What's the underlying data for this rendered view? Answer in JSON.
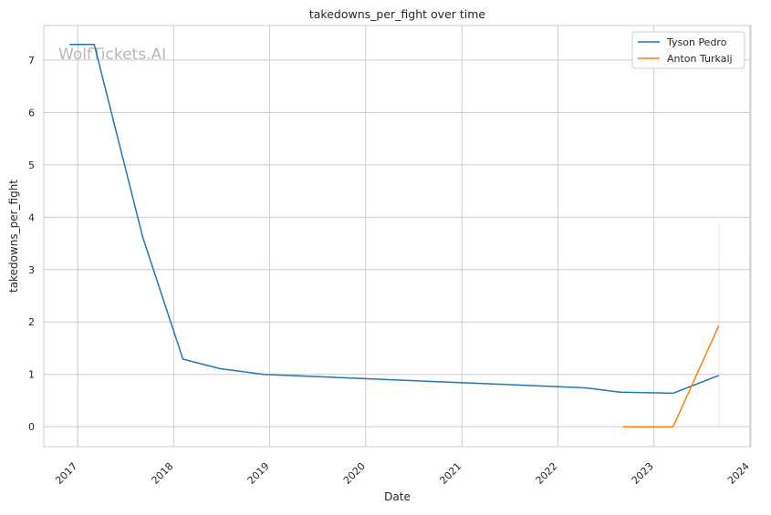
{
  "chart_data": {
    "type": "line",
    "title": "takedowns_per_fight over time",
    "xlabel": "Date",
    "ylabel": "takedowns_per_fight",
    "watermark": "WolfTickets.AI",
    "x_ticks": [
      "2017",
      "2018",
      "2019",
      "2020",
      "2021",
      "2022",
      "2023",
      "2024"
    ],
    "y_ticks": [
      "0",
      "1",
      "2",
      "3",
      "4",
      "5",
      "6",
      "7"
    ],
    "xlim": [
      "2016-08-25",
      "2024-01-05"
    ],
    "ylim": [
      -0.38,
      7.66
    ],
    "grid": true,
    "legend_position": "top-right",
    "series": [
      {
        "name": "Tyson Pedro",
        "color": "#1f77b4",
        "points": [
          {
            "x": "2016-12-01",
            "y": 7.3
          },
          {
            "x": "2017-03-05",
            "y": 7.3
          },
          {
            "x": "2017-09-05",
            "y": 3.62
          },
          {
            "x": "2018-02-05",
            "y": 1.29
          },
          {
            "x": "2018-06-25",
            "y": 1.11
          },
          {
            "x": "2018-12-10",
            "y": 1.0
          },
          {
            "x": "2022-04-20",
            "y": 0.74
          },
          {
            "x": "2022-08-25",
            "y": 0.66
          },
          {
            "x": "2023-03-15",
            "y": 0.64
          },
          {
            "x": "2023-09-05",
            "y": 0.98
          }
        ]
      },
      {
        "name": "Anton Turkalj",
        "color": "#ff7f0e",
        "points": [
          {
            "x": "2022-09-05",
            "y": 0.0
          },
          {
            "x": "2023-03-15",
            "y": 0.0
          },
          {
            "x": "2023-09-05",
            "y": 1.93
          }
        ],
        "band": {
          "x": "2023-09-05",
          "low": 0.0,
          "high": 3.86
        }
      }
    ]
  }
}
